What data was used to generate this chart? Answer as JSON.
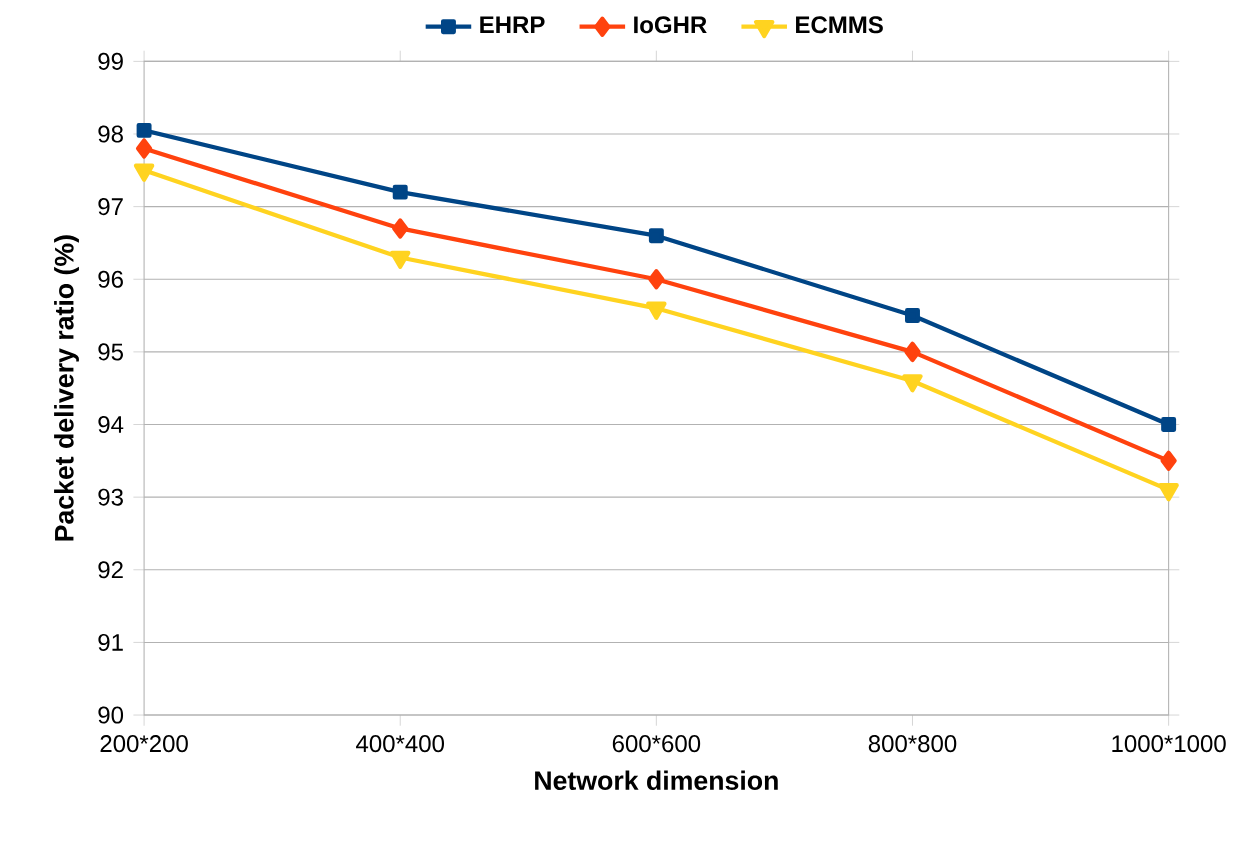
{
  "chart_data": {
    "type": "line",
    "xlabel": "Network dimension",
    "ylabel": "Packet delivery ratio (%)",
    "categories": [
      "200*200",
      "400*400",
      "600*600",
      "800*800",
      "1000*1000"
    ],
    "series": [
      {
        "name": "EHRP",
        "color": "#004586",
        "values": [
          98.05,
          97.2,
          96.6,
          95.5,
          94.0
        ],
        "marker": "square"
      },
      {
        "name": "IoGHR",
        "color": "#ff420e",
        "values": [
          97.8,
          96.7,
          96.0,
          95.0,
          93.5
        ],
        "marker": "diamond"
      },
      {
        "name": "ECMMS",
        "color": "#ffd320",
        "values": [
          97.5,
          96.3,
          95.6,
          94.6,
          93.1
        ],
        "marker": "triangle"
      }
    ],
    "ylim": [
      90,
      99
    ],
    "yticks": [
      90,
      91,
      92,
      93,
      94,
      95,
      96,
      97,
      98,
      99
    ],
    "grid": "y",
    "legend": "top",
    "line_style": "solid"
  }
}
